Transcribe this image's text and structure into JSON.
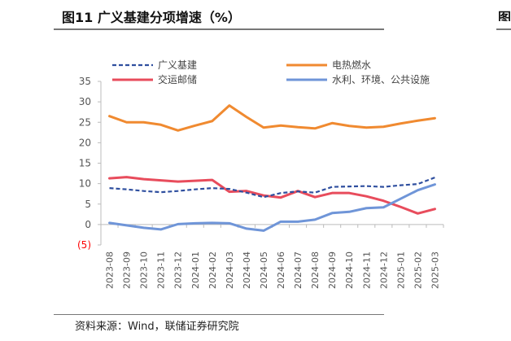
{
  "header": {
    "title": "图11 广义基建分项增速（%）",
    "next_fragment": "图"
  },
  "footer": {
    "source": "资料来源：Wind，联储证券研究院"
  },
  "chart_data": {
    "type": "line",
    "title": "图11 广义基建分项增速（%）",
    "xlabel": "",
    "ylabel": "",
    "ylim": [
      -5,
      35
    ],
    "yticks": [
      35,
      30,
      25,
      20,
      15,
      10,
      5,
      0,
      -5
    ],
    "ytick_labels": [
      "35",
      "30",
      "25",
      "20",
      "15",
      "10",
      "5",
      "0",
      "(5)"
    ],
    "negative_label_color": "#ff0000",
    "legend_position": "top",
    "grid": false,
    "categories": [
      "2023-08",
      "2023-09",
      "2023-10",
      "2023-11",
      "2023-12",
      "2024-01",
      "2024-02",
      "2024-03",
      "2024-04",
      "2024-05",
      "2024-06",
      "2024-07",
      "2024-08",
      "2024-09",
      "2024-10",
      "2024-11",
      "2024-12",
      "2025-01",
      "2025-02",
      "2025-03"
    ],
    "series": [
      {
        "name": "广义基建",
        "color": "#2f4f9f",
        "style": "dashed",
        "values": [
          8.9,
          8.6,
          8.2,
          7.9,
          8.2,
          8.6,
          8.9,
          8.7,
          7.8,
          6.7,
          7.7,
          8.1,
          7.8,
          9.2,
          9.3,
          9.4,
          9.2,
          9.6,
          9.9,
          11.5
        ]
      },
      {
        "name": "电热燃水",
        "color": "#f08a30",
        "style": "solid",
        "values": [
          26.5,
          25.0,
          25.0,
          24.4,
          23.0,
          24.2,
          25.3,
          29.1,
          26.3,
          23.7,
          24.2,
          23.8,
          23.5,
          24.8,
          24.1,
          23.7,
          23.9,
          24.7,
          25.4,
          26.0
        ]
      },
      {
        "name": "交运邮储",
        "color": "#e84c5c",
        "style": "solid",
        "values": [
          11.3,
          11.6,
          11.1,
          10.8,
          10.5,
          10.7,
          10.9,
          8.0,
          8.2,
          7.1,
          6.6,
          8.2,
          6.7,
          7.7,
          7.7,
          6.9,
          5.8,
          4.3,
          2.7,
          3.8
        ]
      },
      {
        "name": "水利、环境、公共设施",
        "color": "#6f95d8",
        "style": "solid",
        "values": [
          0.4,
          -0.2,
          -0.8,
          -1.2,
          0.1,
          0.3,
          0.4,
          0.3,
          -1.0,
          -1.5,
          0.7,
          0.7,
          1.2,
          2.8,
          3.1,
          4.0,
          4.2,
          6.3,
          8.4,
          9.8
        ]
      }
    ]
  }
}
